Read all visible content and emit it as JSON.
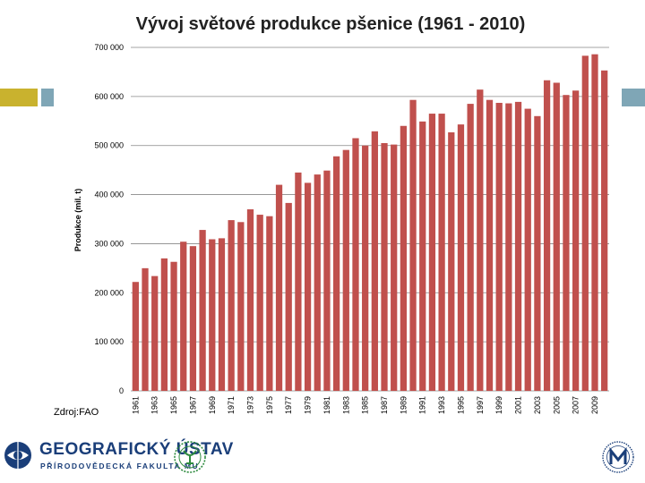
{
  "decor": {
    "accent_gold": "#c9b22e",
    "accent_blue": "#7fa6b6",
    "bar_color": "#c0504d"
  },
  "chart_data": {
    "type": "bar",
    "title": "Vývoj světové produkce pšenice (1961 - 2010)",
    "ylabel": "Produkce (mil. t)",
    "xlabel": "",
    "ylim": [
      0,
      700000
    ],
    "yticks": [
      0,
      100000,
      200000,
      300000,
      400000,
      500000,
      600000,
      700000
    ],
    "ytick_labels": [
      "0",
      "100 000",
      "200 000",
      "300 000",
      "400 000",
      "500 000",
      "600 000",
      "700 000"
    ],
    "grid": true,
    "categories": [
      "1961",
      "1962",
      "1963",
      "1964",
      "1965",
      "1966",
      "1967",
      "1968",
      "1969",
      "1970",
      "1971",
      "1972",
      "1973",
      "1974",
      "1975",
      "1976",
      "1977",
      "1978",
      "1979",
      "1980",
      "1981",
      "1982",
      "1983",
      "1984",
      "1985",
      "1986",
      "1987",
      "1988",
      "1989",
      "1990",
      "1991",
      "1992",
      "1993",
      "1994",
      "1995",
      "1996",
      "1997",
      "1998",
      "1999",
      "2000",
      "2001",
      "2002",
      "2003",
      "2004",
      "2005",
      "2006",
      "2007",
      "2008",
      "2009",
      "2010"
    ],
    "xtick_labels": [
      "1961",
      "",
      "1963",
      "",
      "1965",
      "",
      "1967",
      "",
      "1969",
      "",
      "1971",
      "",
      "1973",
      "",
      "1975",
      "",
      "1977",
      "",
      "1979",
      "",
      "1981",
      "",
      "1983",
      "",
      "1985",
      "",
      "1987",
      "",
      "1989",
      "",
      "1991",
      "",
      "1993",
      "",
      "1995",
      "",
      "1997",
      "",
      "1999",
      "",
      "2001",
      "",
      "2003",
      "",
      "2005",
      "",
      "2007",
      "",
      "2009",
      ""
    ],
    "values": [
      222000,
      250000,
      234000,
      270000,
      263000,
      304000,
      295000,
      328000,
      309000,
      311000,
      348000,
      344000,
      370000,
      359000,
      356000,
      420000,
      383000,
      445000,
      424000,
      441000,
      449000,
      478000,
      491000,
      515000,
      500000,
      529000,
      505000,
      502000,
      540000,
      593000,
      549000,
      565000,
      565000,
      527000,
      543000,
      585000,
      614000,
      593000,
      587000,
      586000,
      589000,
      575000,
      560000,
      633000,
      628000,
      603000,
      612000,
      683000,
      686000,
      653000
    ]
  },
  "source_label": "Zdroj:FAO",
  "logos": {
    "geo_name": "GEOGRAFICKÝ ÚSTAV",
    "geo_sub": "PŘÍRODOVĚDECKÁ FAKULTA MU"
  }
}
